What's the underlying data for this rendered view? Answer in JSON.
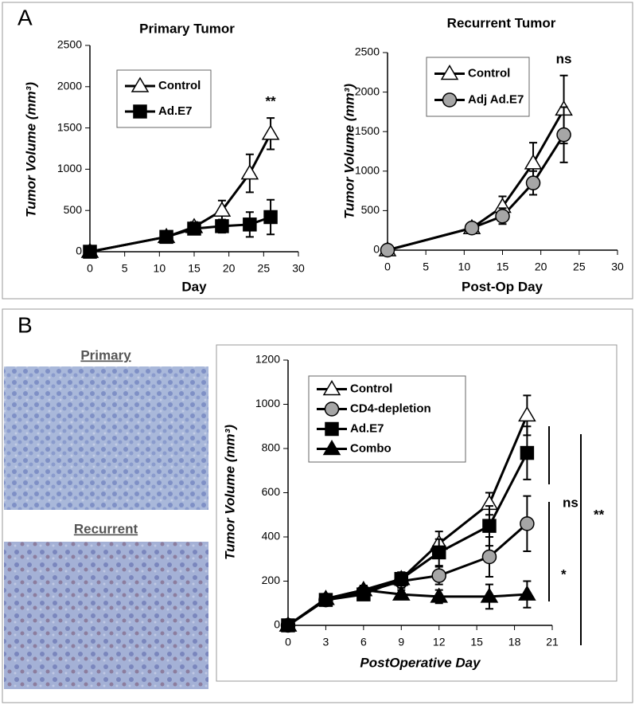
{
  "panels": {
    "A": "A",
    "B": "B"
  },
  "images": [
    {
      "title": "Primary"
    },
    {
      "title": "Recurrent"
    }
  ],
  "chart_data": [
    {
      "type": "line",
      "title": "Primary Tumor",
      "xlabel": "Day",
      "ylabel": "Tumor Volume (mm³)",
      "x": [
        0,
        11,
        15,
        19,
        23,
        26
      ],
      "series": [
        {
          "name": "Control",
          "marker": "triangle",
          "color": "#ffffff",
          "values": [
            0,
            180,
            300,
            500,
            950,
            1430
          ],
          "errors": [
            0,
            30,
            60,
            120,
            230,
            190
          ]
        },
        {
          "name": "Ad.E7",
          "marker": "square",
          "color": "#000000",
          "values": [
            0,
            180,
            280,
            310,
            330,
            420
          ],
          "errors": [
            0,
            40,
            60,
            80,
            150,
            210
          ]
        }
      ],
      "annotations": [
        "**"
      ],
      "xlim": [
        0,
        30
      ],
      "xticks": [
        0,
        5,
        10,
        15,
        20,
        25,
        30
      ],
      "ylim": [
        0,
        2500
      ],
      "yticks": [
        0,
        500,
        1000,
        1500,
        2000,
        2500
      ],
      "legend": "upper left"
    },
    {
      "type": "line",
      "title": "Recurrent Tumor",
      "xlabel": "Post-Op Day",
      "ylabel": "Tumor Volume (mm³)",
      "x": [
        0,
        11,
        15,
        19,
        23
      ],
      "series": [
        {
          "name": "Control",
          "marker": "triangle",
          "color": "#ffffff",
          "values": [
            0,
            280,
            550,
            1100,
            1780
          ],
          "errors": [
            0,
            40,
            130,
            260,
            430
          ]
        },
        {
          "name": "Adj Ad.E7",
          "marker": "circle",
          "color": "#a6a6a6",
          "values": [
            0,
            280,
            430,
            850,
            1460
          ],
          "errors": [
            0,
            40,
            100,
            150,
            350
          ]
        }
      ],
      "annotations": [
        "ns"
      ],
      "xlim": [
        0,
        30
      ],
      "xticks": [
        0,
        5,
        10,
        15,
        20,
        25,
        30
      ],
      "ylim": [
        0,
        2500
      ],
      "yticks": [
        0,
        500,
        1000,
        1500,
        2000,
        2500
      ],
      "legend": "upper left"
    },
    {
      "type": "line",
      "xlabel": "PostOperative Day",
      "ylabel": "Tumor Volume (mm³)",
      "x": [
        0,
        3,
        6,
        9,
        12,
        16,
        19
      ],
      "series": [
        {
          "name": "Control",
          "marker": "triangle",
          "color": "#ffffff",
          "values": [
            0,
            120,
            160,
            210,
            370,
            550,
            950
          ],
          "errors": [
            0,
            20,
            20,
            30,
            55,
            50,
            90
          ]
        },
        {
          "name": "CD4-depletion",
          "marker": "circle",
          "color": "#a6a6a6",
          "values": [
            0,
            115,
            150,
            200,
            225,
            310,
            460
          ],
          "errors": [
            0,
            20,
            20,
            30,
            40,
            90,
            125
          ]
        },
        {
          "name": "Ad.E7",
          "marker": "square",
          "color": "#000000",
          "values": [
            0,
            115,
            140,
            210,
            330,
            450,
            780
          ],
          "errors": [
            0,
            20,
            20,
            30,
            60,
            90,
            120
          ]
        },
        {
          "name": "Combo",
          "marker": "triangle",
          "color": "#000000",
          "values": [
            0,
            120,
            160,
            140,
            130,
            130,
            140
          ],
          "errors": [
            0,
            20,
            20,
            20,
            30,
            55,
            60
          ]
        }
      ],
      "annotations": [
        "ns",
        "*",
        "**"
      ],
      "xlim": [
        0,
        21
      ],
      "xticks": [
        0,
        3,
        6,
        9,
        12,
        15,
        18,
        21
      ],
      "ylim": [
        0,
        1200
      ],
      "yticks": [
        0,
        200,
        400,
        600,
        800,
        1000,
        1200
      ],
      "legend": "upper left"
    }
  ]
}
